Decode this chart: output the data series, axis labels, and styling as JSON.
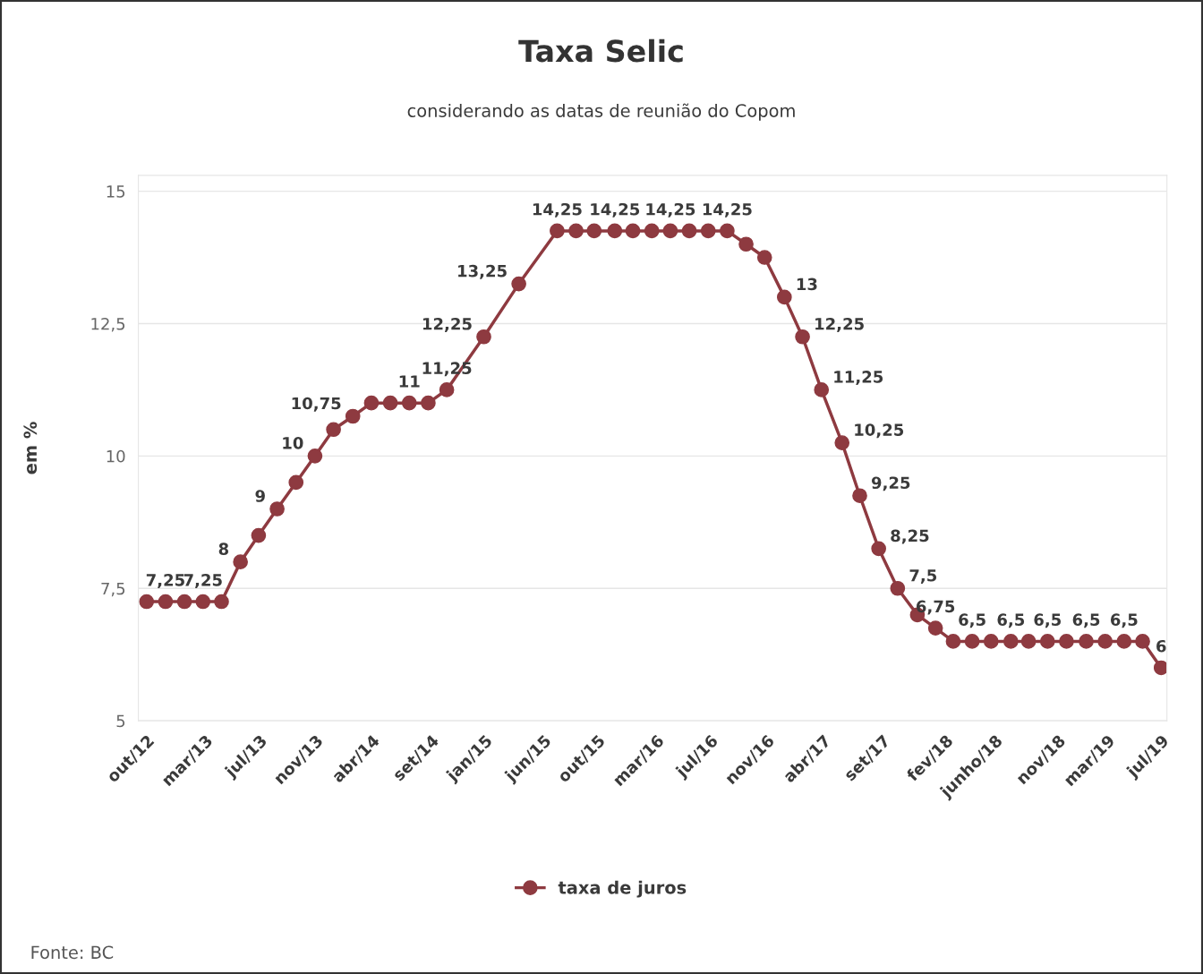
{
  "chart_data": {
    "type": "line",
    "title": "Taxa Selic",
    "subtitle": "considerando as datas de reunião do Copom",
    "ylabel": "em %",
    "x": [
      "2012-10-10",
      "2012-11-25",
      "2013-01-10",
      "2013-02-24",
      "2013-04-10",
      "2013-05-26",
      "2013-07-09",
      "2013-08-23",
      "2013-10-08",
      "2013-11-23",
      "2014-01-07",
      "2014-02-23",
      "2014-04-09",
      "2014-05-25",
      "2014-07-10",
      "2014-08-25",
      "2014-10-09",
      "2015-01-07",
      "2015-04-02",
      "2015-07-04",
      "2015-08-19",
      "2015-10-02",
      "2015-11-21",
      "2016-01-04",
      "2016-02-19",
      "2016-04-04",
      "2016-05-20",
      "2016-07-05",
      "2016-08-20",
      "2016-10-05",
      "2016-11-19",
      "2017-01-06",
      "2017-02-19",
      "2017-04-06",
      "2017-05-26",
      "2017-07-08",
      "2017-08-23",
      "2017-10-08",
      "2017-11-25",
      "2018-01-08",
      "2018-02-20",
      "2018-04-07",
      "2018-05-23",
      "2018-07-10",
      "2018-08-22",
      "2018-10-07",
      "2018-11-22",
      "2019-01-09",
      "2019-02-24",
      "2019-04-11",
      "2019-05-26",
      "2019-07-10"
    ],
    "series": [
      {
        "name": "taxa de juros",
        "color": "#8e3a40",
        "values": [
          7.25,
          7.25,
          7.25,
          7.25,
          7.25,
          8,
          8.5,
          9,
          9.5,
          10,
          10.5,
          10.75,
          11,
          11,
          11,
          11,
          11.25,
          12.25,
          13.25,
          14.25,
          14.25,
          14.25,
          14.25,
          14.25,
          14.25,
          14.25,
          14.25,
          14.25,
          14.25,
          14,
          13.75,
          13,
          12.25,
          11.25,
          10.25,
          9.25,
          8.25,
          7.5,
          7,
          6.75,
          6.5,
          6.5,
          6.5,
          6.5,
          6.5,
          6.5,
          6.5,
          6.5,
          6.5,
          6.5,
          6.5,
          6
        ],
        "value_labels": [
          null,
          "7,25",
          null,
          "7,25",
          null,
          "8",
          null,
          "9",
          null,
          "10",
          null,
          "10,75",
          null,
          null,
          "11",
          null,
          "11,25",
          "12,25",
          "13,25",
          "14,25",
          null,
          null,
          "14,25",
          null,
          null,
          "14,25",
          null,
          null,
          "14,25",
          null,
          null,
          "13",
          "12,25",
          "11,25",
          "10,25",
          "9,25",
          "8,25",
          "7,5",
          null,
          "6,75",
          null,
          "6,5",
          null,
          "6,5",
          null,
          "6,5",
          null,
          "6,5",
          null,
          "6,5",
          null,
          "6"
        ]
      }
    ],
    "xlim": [
      "2012-09-20",
      "2019-07-24"
    ],
    "xticks": [
      {
        "value": "2012-10-10",
        "label": "out/12"
      },
      {
        "value": "2013-03-01",
        "label": "mar/13"
      },
      {
        "value": "2013-07-11",
        "label": "jul/13"
      },
      {
        "value": "2013-11-24",
        "label": "nov/13"
      },
      {
        "value": "2014-04-10",
        "label": "abr/14"
      },
      {
        "value": "2014-09-01",
        "label": "set/14"
      },
      {
        "value": "2015-01-09",
        "label": "jan/15"
      },
      {
        "value": "2015-06-01",
        "label": "jun/15"
      },
      {
        "value": "2015-10-10",
        "label": "out/15"
      },
      {
        "value": "2016-03-01",
        "label": "mar/16"
      },
      {
        "value": "2016-07-10",
        "label": "jul/16"
      },
      {
        "value": "2016-11-24",
        "label": "nov/16"
      },
      {
        "value": "2017-04-10",
        "label": "abr/17"
      },
      {
        "value": "2017-09-01",
        "label": "set/17"
      },
      {
        "value": "2018-02-01",
        "label": "fev/18"
      },
      {
        "value": "2018-06-01",
        "label": "junho/18"
      },
      {
        "value": "2018-11-01",
        "label": "nov/18"
      },
      {
        "value": "2019-03-01",
        "label": "mar/19"
      },
      {
        "value": "2019-07-10",
        "label": "jul/19"
      }
    ],
    "ylim": [
      5,
      15.3
    ],
    "yticks": [
      {
        "value": 5,
        "label": "5"
      },
      {
        "value": 7.5,
        "label": "7,5"
      },
      {
        "value": 10,
        "label": "10"
      },
      {
        "value": 12.5,
        "label": "12,5"
      },
      {
        "value": 15,
        "label": "15"
      }
    ],
    "grid": "y",
    "legend": "bottom",
    "marker": "circle",
    "line_style": "solid",
    "annotations": [
      "Fonte: BC"
    ]
  }
}
